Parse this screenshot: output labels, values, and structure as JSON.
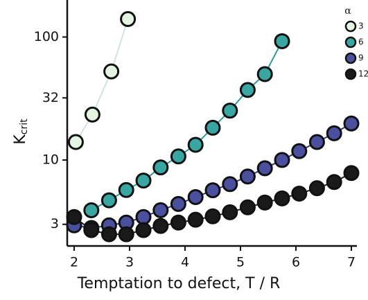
{
  "chart_data": {
    "type": "line",
    "xlabel": "Temptation to defect, T / R",
    "ylabel": "K",
    "ylabel_sub": "crit",
    "log_y": true,
    "xlim": [
      1.875,
      7.1
    ],
    "ylim": [
      2,
      200
    ],
    "xticks": [
      2,
      3,
      4,
      5,
      6,
      7
    ],
    "yticks": [
      3,
      10,
      32,
      100
    ],
    "legend_title": "α",
    "legend_position": "top-right",
    "series": [
      {
        "name": "3",
        "color": "#e6f4e2",
        "line_color": "#cde6dc",
        "x": [
          2.03,
          2.33,
          2.67,
          2.97
        ],
        "values": [
          14,
          23.4,
          52.5,
          140
        ]
      },
      {
        "name": "6",
        "color": "#3aa6a2",
        "line_color": "#2e9a98",
        "x": [
          2.31,
          2.63,
          2.94,
          3.25,
          3.56,
          3.88,
          4.19,
          4.5,
          4.81,
          5.13,
          5.44,
          5.75
        ],
        "values": [
          3.9,
          4.7,
          5.7,
          6.8,
          8.7,
          10.7,
          13.3,
          18.3,
          25.2,
          37.1,
          49.9,
          92.5
        ]
      },
      {
        "name": "9",
        "color": "#4a4f9e",
        "line_color": "#2c3a7a",
        "x": [
          2,
          2.31,
          2.63,
          2.94,
          3.25,
          3.56,
          3.88,
          4.19,
          4.5,
          4.81,
          5.13,
          5.44,
          5.75,
          6.06,
          6.38,
          6.69,
          7.0
        ],
        "values": [
          2.94,
          2.8,
          2.94,
          3.1,
          3.44,
          3.91,
          4.39,
          4.99,
          5.67,
          6.37,
          7.34,
          8.57,
          10,
          11.8,
          14,
          16.5,
          19.8
        ]
      },
      {
        "name": "12",
        "color": "#1a1a1a",
        "line_color": "#1a1a1a",
        "x": [
          2,
          2.31,
          2.63,
          2.94,
          3.25,
          3.56,
          3.88,
          4.19,
          4.5,
          4.81,
          5.13,
          5.44,
          5.75,
          6.06,
          6.38,
          6.69,
          7.0
        ],
        "values": [
          3.44,
          2.69,
          2.49,
          2.49,
          2.69,
          2.91,
          3.1,
          3.27,
          3.48,
          3.76,
          4.12,
          4.51,
          4.87,
          5.33,
          5.9,
          6.62,
          7.83
        ]
      }
    ]
  }
}
